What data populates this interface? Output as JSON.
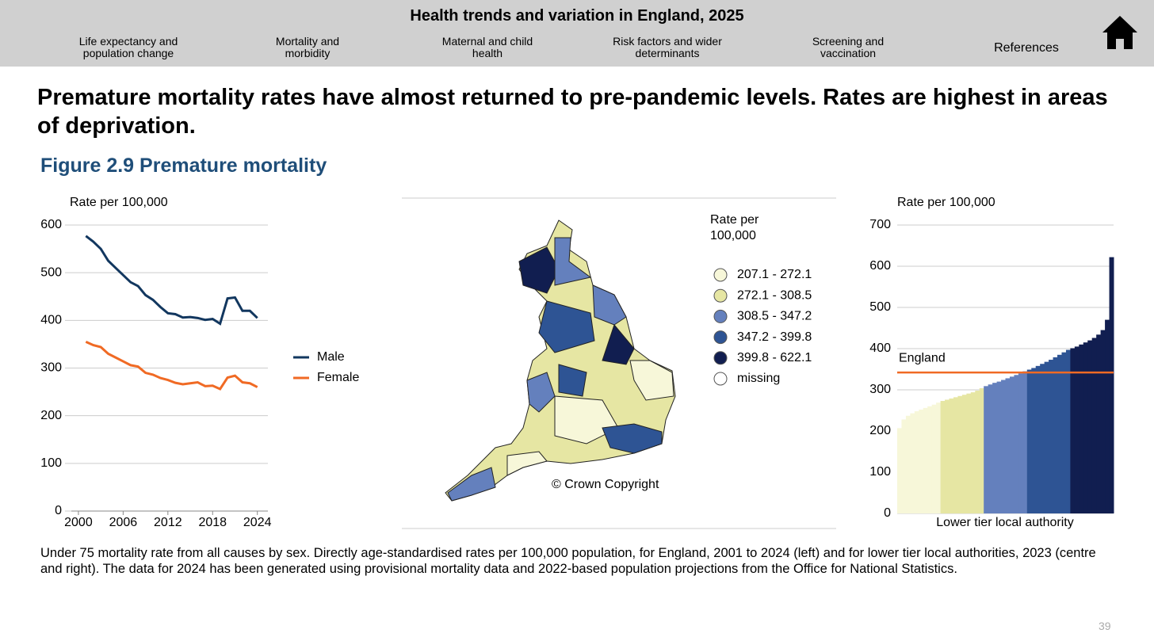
{
  "header": {
    "title": "Health trends and variation in England, 2025",
    "nav": [
      "Life expectancy and population change",
      "Mortality and morbidity",
      "Maternal and child health",
      "Risk factors and wider determinants",
      "Screening and vaccination",
      "References"
    ]
  },
  "headline": "Premature mortality rates have almost returned to pre-pandemic levels. Rates are highest in areas of deprivation.",
  "figure_title": "Figure 2.9 Premature mortality",
  "chart_data": [
    {
      "type": "line",
      "ylabel": "Rate per 100,000",
      "x": [
        2001,
        2002,
        2003,
        2004,
        2005,
        2006,
        2007,
        2008,
        2009,
        2010,
        2011,
        2012,
        2013,
        2014,
        2015,
        2016,
        2017,
        2018,
        2019,
        2020,
        2021,
        2022,
        2023,
        2024
      ],
      "series": [
        {
          "name": "Male",
          "color": "#12375f",
          "values": [
            577,
            565,
            550,
            525,
            510,
            495,
            480,
            472,
            453,
            443,
            428,
            415,
            413,
            406,
            407,
            405,
            401,
            403,
            393,
            446,
            448,
            420,
            420,
            405
          ]
        },
        {
          "name": "Female",
          "color": "#f06a24",
          "values": [
            355,
            348,
            344,
            330,
            322,
            314,
            306,
            303,
            290,
            286,
            279,
            275,
            269,
            266,
            268,
            270,
            262,
            263,
            256,
            280,
            284,
            270,
            268,
            260
          ]
        }
      ],
      "xlim": [
        1998.2,
        2025.2
      ],
      "xticks": [
        2000,
        2006,
        2012,
        2018,
        2024
      ],
      "ylim": [
        0,
        600
      ],
      "yticks": [
        0,
        100,
        200,
        300,
        400,
        500,
        600
      ],
      "grid": true
    },
    {
      "type": "bar",
      "ylabel": "Rate per 100,000",
      "xlabel": "Lower tier local authority",
      "series": [
        {
          "color": "#f7f7d9",
          "values": [
            207,
            228,
            237,
            243,
            248,
            252,
            256,
            260,
            264,
            269
          ]
        },
        {
          "color": "#e6e6a3",
          "values": [
            273,
            276,
            279,
            282,
            285,
            288,
            291,
            294,
            298,
            304
          ]
        },
        {
          "color": "#6480bd",
          "values": [
            309,
            313,
            317,
            320,
            324,
            328,
            332,
            336,
            340,
            345
          ]
        },
        {
          "color": "#2e5494",
          "values": [
            349,
            353,
            358,
            363,
            368,
            373,
            379,
            385,
            391,
            397
          ]
        },
        {
          "color": "#111e50",
          "values": [
            401,
            405,
            410,
            415,
            420,
            426,
            434,
            445,
            470,
            622
          ]
        }
      ],
      "annotations": [
        {
          "text": "England",
          "value": 342,
          "color": "#f06a24"
        }
      ],
      "ylim": [
        0,
        700
      ],
      "yticks": [
        0,
        100,
        200,
        300,
        400,
        500,
        600,
        700
      ],
      "grid": true
    }
  ],
  "map": {
    "legend_title": "Rate per 100,000",
    "classes": [
      {
        "label": "207.1 - 272.1",
        "color": "#f7f7d9"
      },
      {
        "label": "272.1 - 308.5",
        "color": "#e6e6a3"
      },
      {
        "label": "308.5 - 347.2",
        "color": "#6480bd"
      },
      {
        "label": "347.2 - 399.8",
        "color": "#2e5494"
      },
      {
        "label": "399.8 - 622.1",
        "color": "#111e50"
      },
      {
        "label": "missing",
        "color": "#ffffff"
      }
    ],
    "copyright": "© Crown Copyright"
  },
  "caption": "Under 75 mortality rate from all causes by sex. Directly age-standardised rates per 100,000 population, for England, 2001 to 2024 (left) and for lower tier local authorities, 2023 (centre and right). The data for 2024 has been generated using provisional mortality data and 2022-based population projections from the Office for National Statistics.",
  "page_number": "39"
}
